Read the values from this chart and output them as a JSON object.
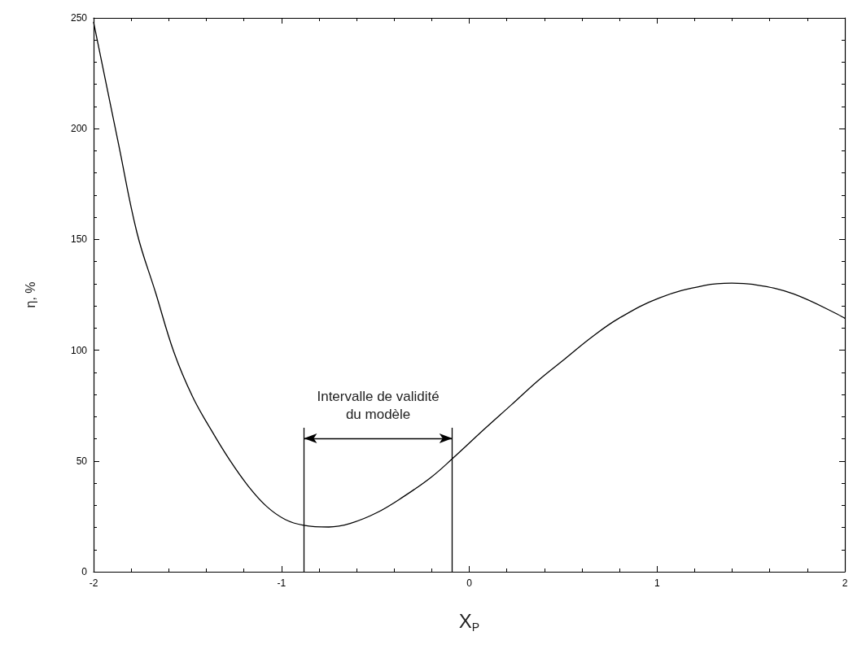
{
  "chart_data": {
    "type": "line",
    "xlabel": "X$_{P}$",
    "ylabel": "η, %",
    "x": [
      -2,
      -1.867,
      -1.769,
      -1.67,
      -1.572,
      -1.473,
      -1.374,
      -1.276,
      -1.177,
      -1.079,
      -0.98,
      -0.882,
      -0.748,
      -0.634,
      -0.491,
      -0.348,
      -0.205,
      -0.09,
      0.082,
      0.225,
      0.368,
      0.511,
      0.654,
      0.797,
      1.012,
      1.255,
      1.398,
      1.512,
      1.727,
      2
    ],
    "series": [
      {
        "color": "#000000",
        "values": [
          248,
          193,
          153,
          126,
          99,
          79,
          64,
          50.5,
          38.7,
          29.5,
          23.6,
          21,
          20.2,
          21.8,
          26.7,
          34,
          42.5,
          51,
          64.5,
          75.4,
          86.4,
          96.2,
          106,
          114.4,
          123.6,
          129.3,
          130.3,
          129.7,
          125.4,
          114.4
        ]
      }
    ],
    "xlim": [
      -2,
      2
    ],
    "xticks": [
      -2,
      -1,
      0,
      1,
      2
    ],
    "ylim": [
      0,
      250
    ],
    "yticks": [
      0,
      50,
      100,
      150,
      200,
      250
    ],
    "ref_lines": [
      {
        "axis": "x",
        "value": -0.88,
        "label": null
      },
      {
        "axis": "x",
        "value": -0.09,
        "label": null
      }
    ],
    "annotations": [
      "Intervalle de validité\ndu modèle"
    ],
    "grid": false,
    "marker": "none",
    "line_style": "solid"
  }
}
